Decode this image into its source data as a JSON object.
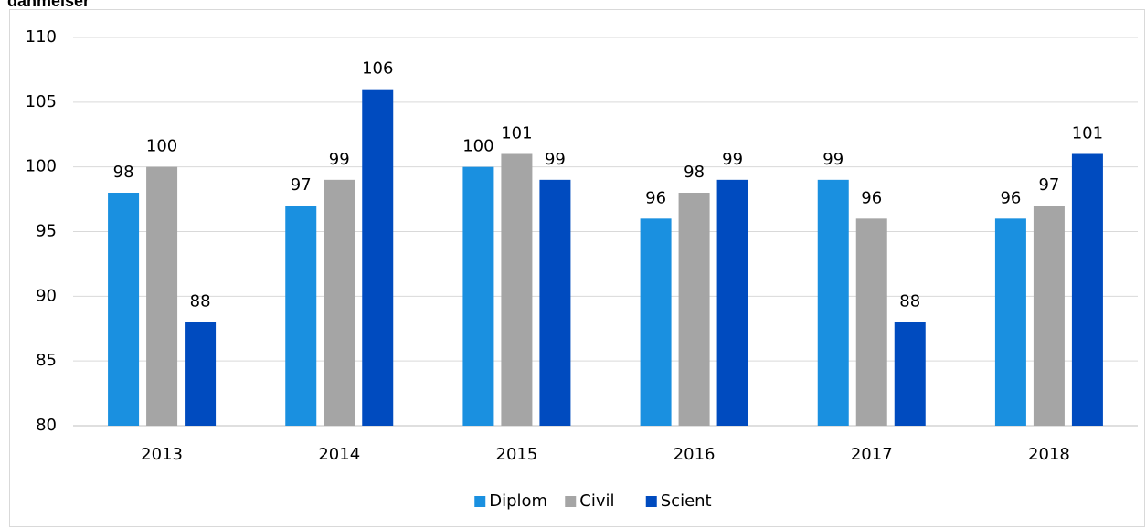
{
  "chart_data": {
    "type": "bar",
    "title": "danmelser",
    "categories": [
      "2013",
      "2014",
      "2015",
      "2016",
      "2017",
      "2018"
    ],
    "series": [
      {
        "name": "Diplom",
        "color": "#1a90e0",
        "values": [
          98,
          97,
          100,
          96,
          99,
          96
        ]
      },
      {
        "name": "Civil",
        "color": "#a5a5a5",
        "values": [
          100,
          99,
          101,
          98,
          96,
          97
        ]
      },
      {
        "name": "Scient",
        "color": "#004bbf",
        "values": [
          88,
          106,
          99,
          99,
          88,
          101
        ]
      }
    ],
    "ylim": [
      80,
      110
    ],
    "yticks": [
      80,
      85,
      90,
      95,
      100,
      105,
      110
    ],
    "grid": true,
    "legend": "bottom"
  }
}
